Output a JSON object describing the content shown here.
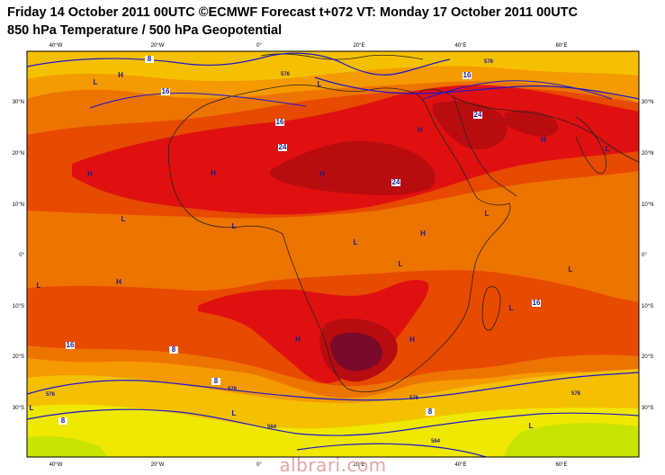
{
  "title_line1": "Friday 14 October 2011 00UTC ©ECMWF Forecast t+072 VT: Monday 17 October 2011 00UTC",
  "title_line2": "850 hPa Temperature / 500 hPa Geopotential",
  "watermark": "albrari.com",
  "colors": {
    "frame": "#000000",
    "yellow": "#f0e800",
    "yellow_orange": "#f5c000",
    "orange_light": "#f59a00",
    "orange": "#ee7400",
    "orange_red": "#e84a00",
    "red": "#e01010",
    "dark_red": "#b80c10",
    "maroon": "#7a0a2a",
    "green_yellow": "#c8e400",
    "contour_blue": "#1a1acc",
    "coast": "#222222"
  },
  "map": {
    "lon_ticks": [
      "40°W",
      "20°W",
      "0°",
      "20°E",
      "40°E",
      "60°E"
    ],
    "lat_ticks_left": [
      "30°N",
      "20°N",
      "10°N",
      "0°",
      "10°S",
      "20°S",
      "30°S"
    ],
    "lat_ticks_right": [
      "30°N",
      "20°N",
      "10°N",
      "0°",
      "10°S",
      "20°S",
      "30°S"
    ],
    "temperature_labels": [
      "8",
      "16",
      "16",
      "24",
      "24",
      "24",
      "16",
      "16",
      "16",
      "8",
      "8",
      "8",
      "8"
    ],
    "geopotential_labels": [
      "576",
      "576",
      "576",
      "576",
      "576",
      "576",
      "564",
      "564"
    ],
    "pressure_centers": [
      "H",
      "H",
      "H",
      "H",
      "H",
      "H",
      "H",
      "H",
      "H",
      "H",
      "L",
      "L",
      "L",
      "L",
      "L",
      "L",
      "L",
      "L",
      "L",
      "L",
      "L",
      "L",
      "L",
      "L"
    ]
  }
}
